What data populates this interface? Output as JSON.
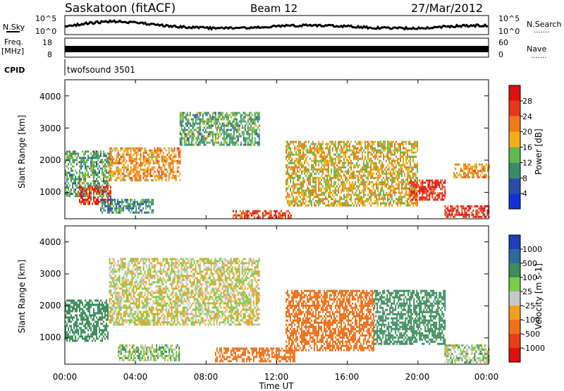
{
  "header": {
    "station": "Saskatoon (fitACF)",
    "beam": "Beam 12",
    "date": "27/Mar/2012"
  },
  "status_panels": {
    "nsky_label": "N.Sky",
    "nsky_ticks": [
      "10^5",
      "10^0"
    ],
    "nsearch_label": "N.Search",
    "nsearch_ticks": [
      "10^5",
      "10^0"
    ],
    "freq_label": "Freq.",
    "freq_unit": "[MHz]",
    "freq_ticks": [
      "18",
      "8"
    ],
    "nave_label": "Nave",
    "nave_ticks": [
      "60",
      "0"
    ],
    "cpid_label": "CPID",
    "cpid_text": "twofsound 3501",
    "dots": "......."
  },
  "axes": {
    "xlabel": "Time UT",
    "xticks": [
      "00:00",
      "04:00",
      "08:00",
      "12:00",
      "16:00",
      "20:00",
      "00:00"
    ],
    "ylabel": "Slant Range [km]",
    "yticks": [
      "1000",
      "2000",
      "3000",
      "4000"
    ]
  },
  "colorbars": {
    "power": {
      "label": "Power [dB]",
      "ticks": [
        "4",
        "8",
        "12",
        "16",
        "20",
        "24",
        "28"
      ],
      "colors": [
        "#1530d8",
        "#2a4ea8",
        "#3a8a6a",
        "#62b850",
        "#f2b018",
        "#ef7a1a",
        "#e8381a",
        "#e01010"
      ]
    },
    "velocity": {
      "label": "Velocity [m s-1]",
      "ticks": [
        "1000",
        "500",
        "100",
        "25",
        "-25",
        "-100",
        "-500",
        "-1000"
      ],
      "colors": [
        "#1d3fb8",
        "#2e6aa0",
        "#3d8c5c",
        "#7acc48",
        "#c8c8c8",
        "#f0a020",
        "#ee7018",
        "#e84018",
        "#e01010"
      ]
    }
  },
  "chart_data": [
    {
      "type": "heatmap",
      "title": "",
      "xlabel": "Time UT",
      "ylabel": "Slant Range [km]",
      "xlim": [
        0,
        24
      ],
      "ylim": [
        180,
        4500
      ],
      "colorbar": "Power [dB]",
      "regions": [
        {
          "t": [
            0.0,
            2.6
          ],
          "r": [
            900,
            2300
          ],
          "value": 12
        },
        {
          "t": [
            0.8,
            2.6
          ],
          "r": [
            650,
            1200
          ],
          "value": 28
        },
        {
          "t": [
            2.5,
            6.5
          ],
          "r": [
            1400,
            2400
          ],
          "value": 20
        },
        {
          "t": [
            6.5,
            11.0
          ],
          "r": [
            2500,
            3500
          ],
          "value": 12
        },
        {
          "t": [
            2.0,
            5.0
          ],
          "r": [
            400,
            800
          ],
          "value": 10
        },
        {
          "t": [
            9.5,
            12.8
          ],
          "r": [
            250,
            450
          ],
          "value": 26
        },
        {
          "t": [
            12.5,
            20.0
          ],
          "r": [
            600,
            2600
          ],
          "value": 18
        },
        {
          "t": [
            19.5,
            21.5
          ],
          "r": [
            800,
            1400
          ],
          "value": 28
        },
        {
          "t": [
            21.5,
            24.0
          ],
          "r": [
            250,
            600
          ],
          "value": 28
        },
        {
          "t": [
            22.0,
            24.0
          ],
          "r": [
            1500,
            1900
          ],
          "value": 20
        }
      ]
    },
    {
      "type": "heatmap",
      "title": "",
      "xlabel": "Time UT",
      "ylabel": "Slant Range [km]",
      "xlim": [
        0,
        24
      ],
      "ylim": [
        180,
        4500
      ],
      "colorbar": "Velocity [m s-1]",
      "regions": [
        {
          "t": [
            0.0,
            2.4
          ],
          "r": [
            900,
            2200
          ],
          "value": 300
        },
        {
          "t": [
            2.5,
            11.0
          ],
          "r": [
            1400,
            3500
          ],
          "value": 0
        },
        {
          "t": [
            3.0,
            6.5
          ],
          "r": [
            300,
            800
          ],
          "value": 60
        },
        {
          "t": [
            8.5,
            13.0
          ],
          "r": [
            250,
            700
          ],
          "value": -300
        },
        {
          "t": [
            12.5,
            17.5
          ],
          "r": [
            600,
            2500
          ],
          "value": -250
        },
        {
          "t": [
            17.5,
            21.5
          ],
          "r": [
            800,
            2500
          ],
          "value": 300
        },
        {
          "t": [
            21.5,
            24.0
          ],
          "r": [
            250,
            800
          ],
          "value": 50
        }
      ]
    }
  ]
}
